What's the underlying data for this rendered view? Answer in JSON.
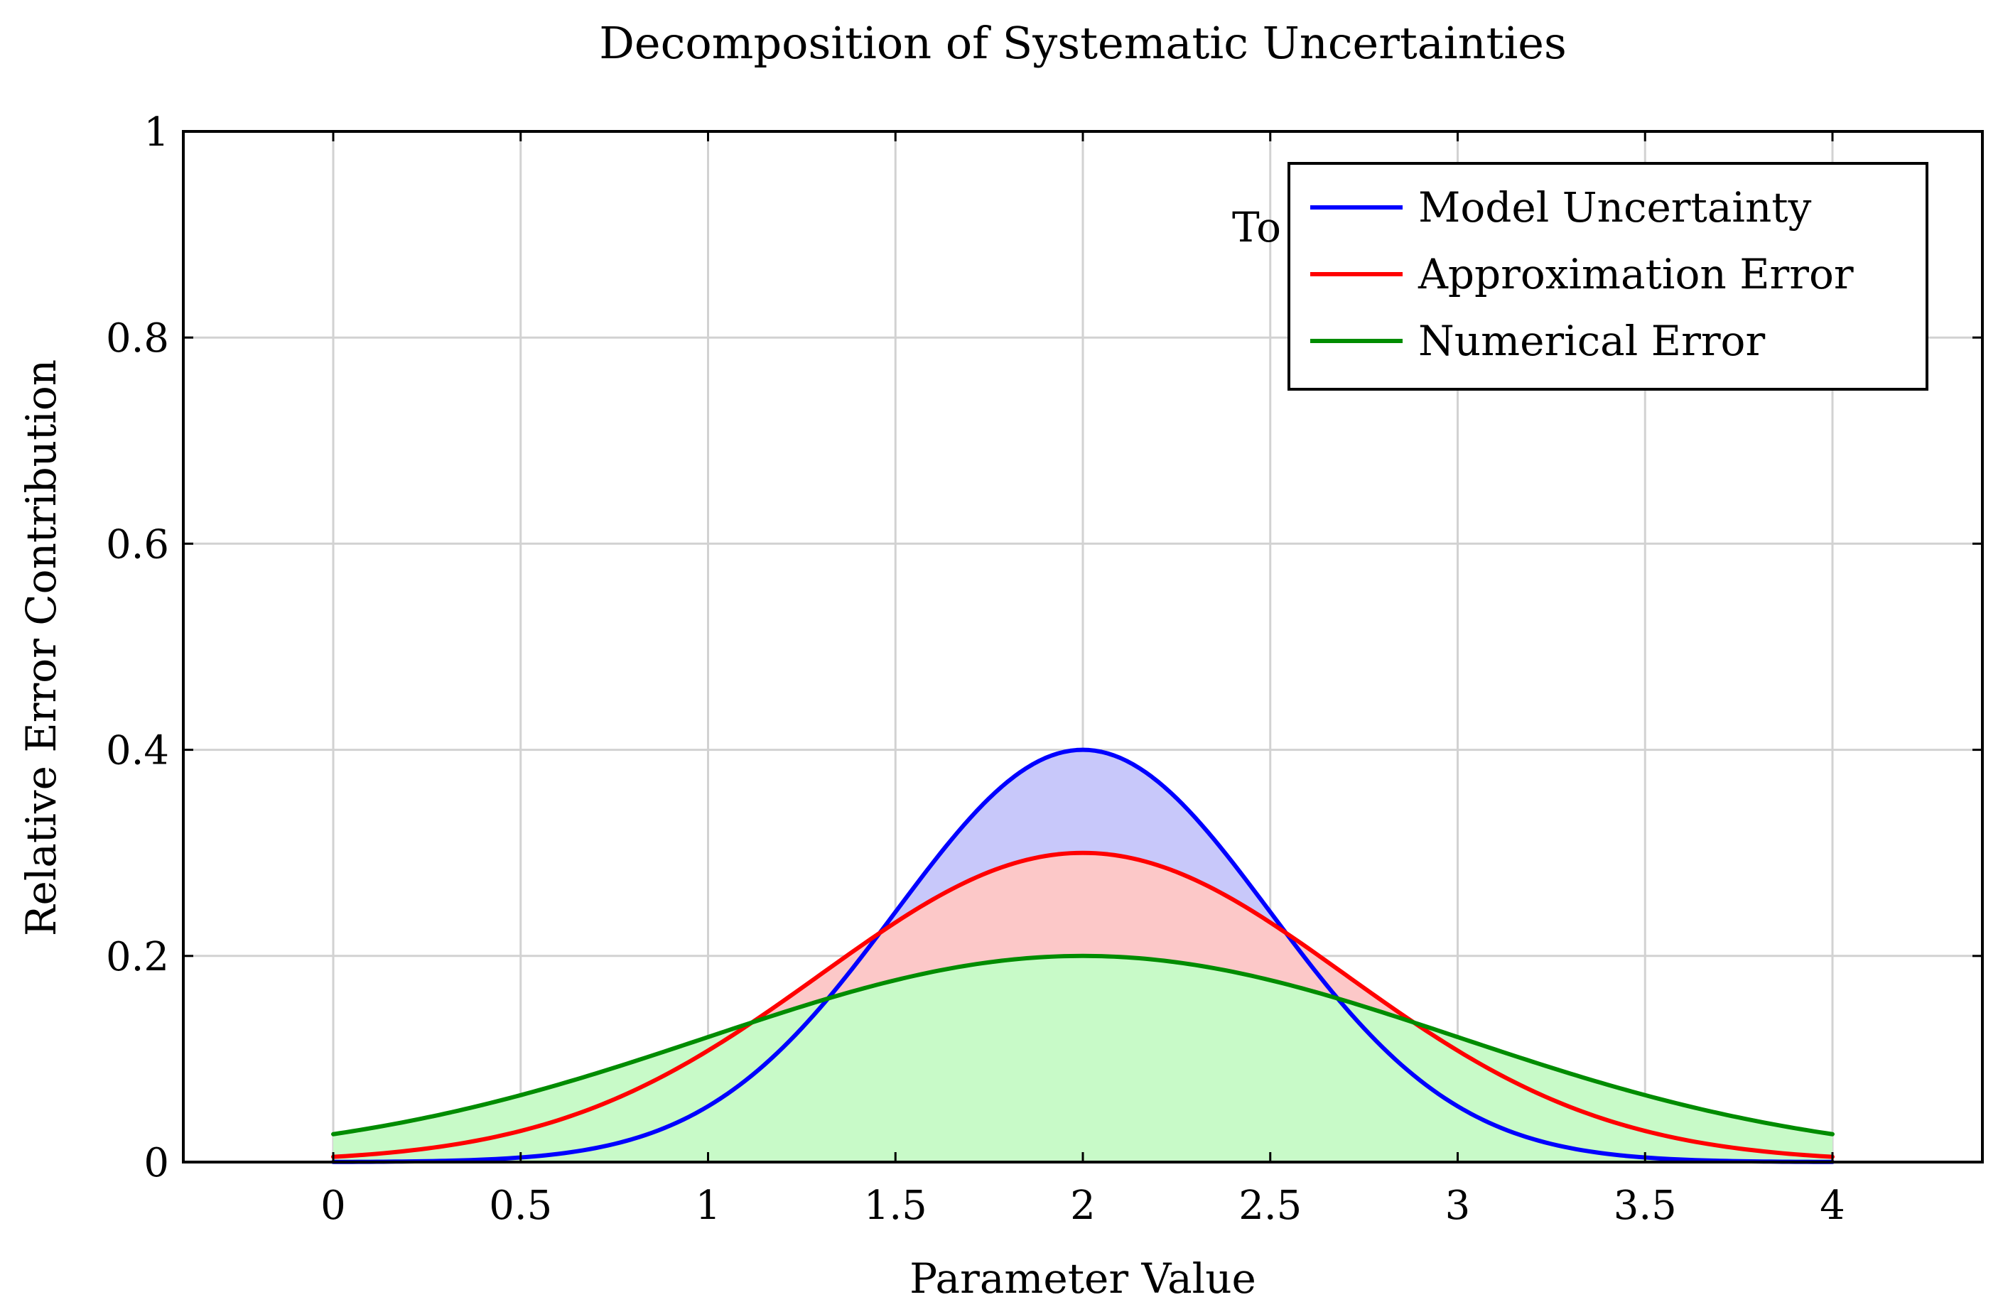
{
  "chart_data": {
    "type": "area",
    "title": "Decomposition of Systematic Uncertainties",
    "xlabel": "Parameter Value",
    "ylabel": "Relative Error Contribution",
    "xlim": [
      -0.4,
      4.4
    ],
    "ylim": [
      0,
      1
    ],
    "xticks": [
      0,
      0.5,
      1,
      1.5,
      2,
      2.5,
      3,
      3.5,
      4
    ],
    "xtick_labels": [
      "0",
      "0.5",
      "1",
      "1.5",
      "2",
      "2.5",
      "3",
      "3.5",
      "4"
    ],
    "yticks": [
      0,
      0.2,
      0.4,
      0.6,
      0.8,
      1
    ],
    "ytick_labels": [
      "0",
      "0.2",
      "0.4",
      "0.6",
      "0.8",
      "1"
    ],
    "grid": true,
    "legend_position": "top-right",
    "annotation": "To",
    "x_range": [
      0,
      4
    ],
    "series": [
      {
        "name": "Model Uncertainty",
        "color": "#0000ff",
        "fill": "#c8c8fa",
        "shape": "gaussian",
        "peak_x": 2,
        "peak": 0.4,
        "sigma": 0.5
      },
      {
        "name": "Approximation Error",
        "color": "#ff0000",
        "fill": "#fcc8c8",
        "shape": "gaussian",
        "peak_x": 2,
        "peak": 0.3,
        "sigma": 0.7
      },
      {
        "name": "Numerical Error",
        "color": "#008c00",
        "fill": "#c8fac8",
        "shape": "gaussian",
        "peak_x": 2,
        "peak": 0.2,
        "sigma": 1.0
      }
    ]
  }
}
